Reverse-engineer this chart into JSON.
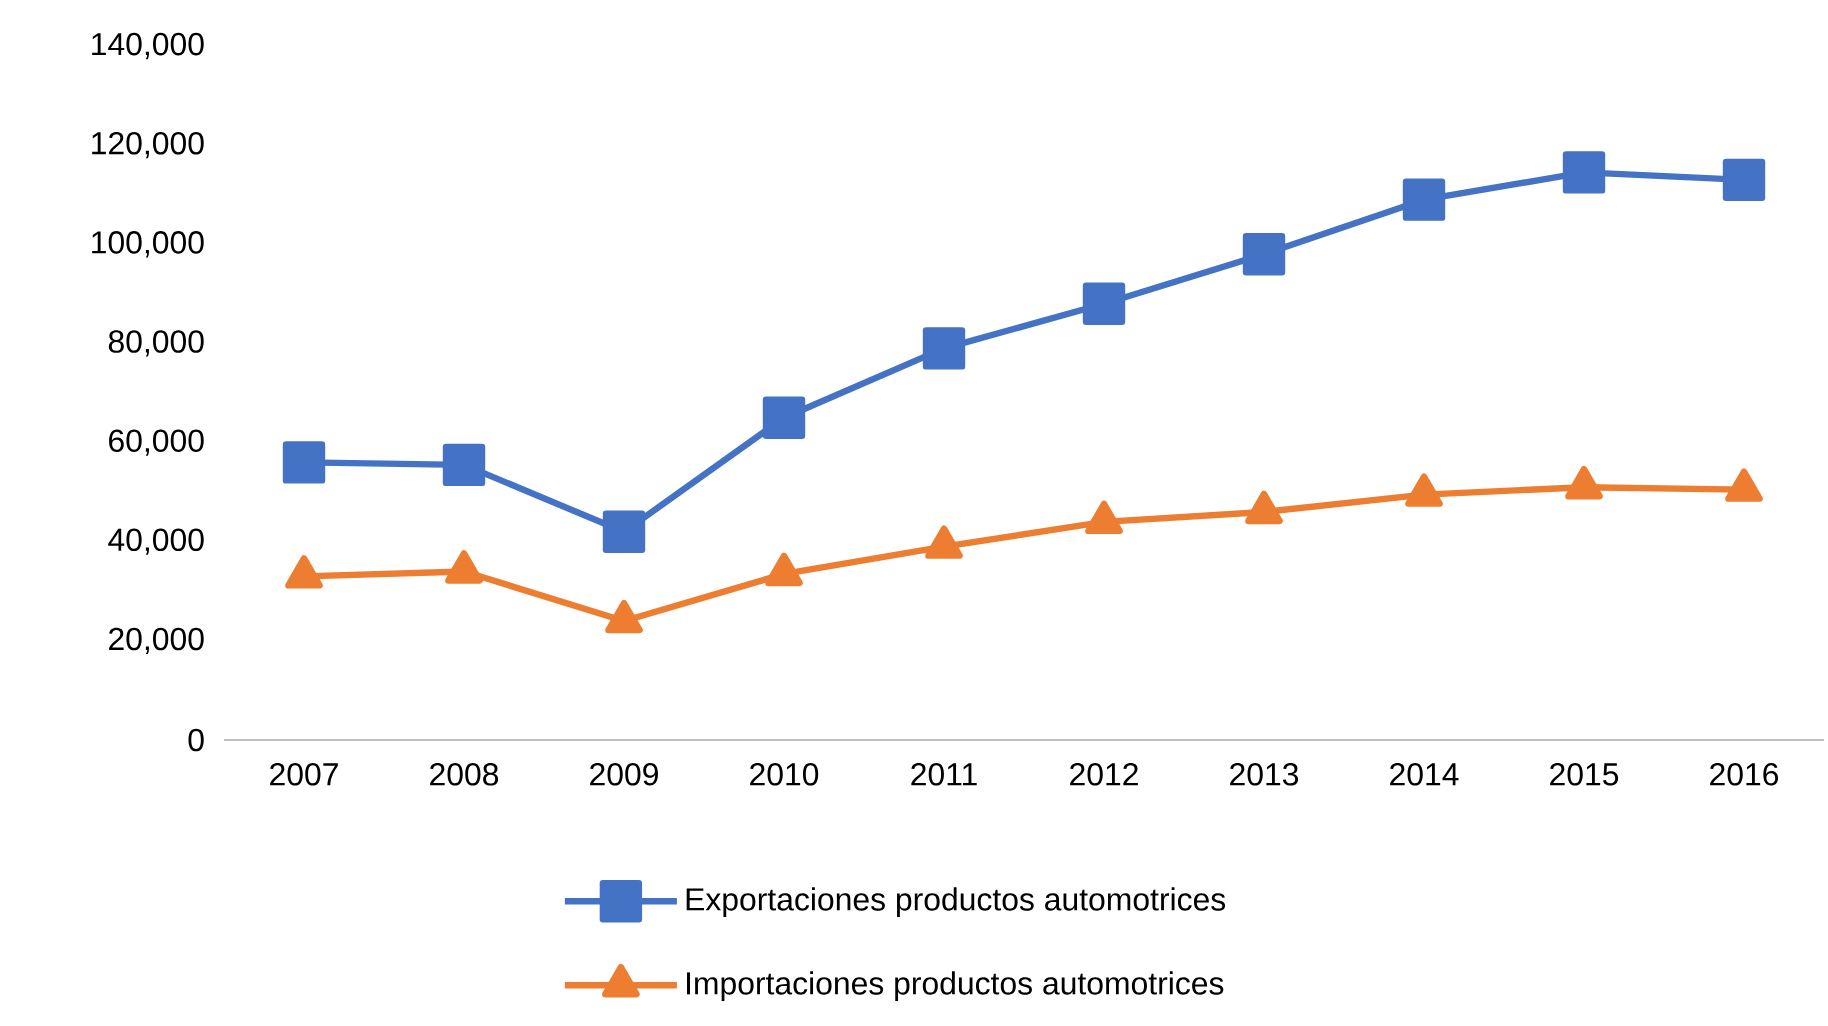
{
  "chart_data": {
    "type": "line",
    "categories": [
      "2007",
      "2008",
      "2009",
      "2010",
      "2011",
      "2012",
      "2013",
      "2014",
      "2015",
      "2016"
    ],
    "series": [
      {
        "name": "Exportaciones productos automotrices",
        "color": "#4472c4",
        "marker": "square",
        "values": [
          56000,
          55500,
          42000,
          65000,
          79000,
          88000,
          98000,
          109000,
          114500,
          113000
        ]
      },
      {
        "name": "Importaciones productos automotrices",
        "color": "#ed7d31",
        "marker": "triangle",
        "values": [
          33000,
          34000,
          24000,
          33500,
          39000,
          44000,
          46000,
          49500,
          51000,
          50500
        ]
      }
    ],
    "ylim": [
      0,
      140000
    ],
    "yticks": [
      {
        "value": 0,
        "label": "0"
      },
      {
        "value": 20000,
        "label": "20,000"
      },
      {
        "value": 40000,
        "label": "40,000"
      },
      {
        "value": 60000,
        "label": "60,000"
      },
      {
        "value": 80000,
        "label": "80,000"
      },
      {
        "value": 100000,
        "label": "100,000"
      },
      {
        "value": 120000,
        "label": "120,000"
      },
      {
        "value": 140000,
        "label": "140,000"
      }
    ],
    "legend": "bottom",
    "line_style": "solid"
  }
}
